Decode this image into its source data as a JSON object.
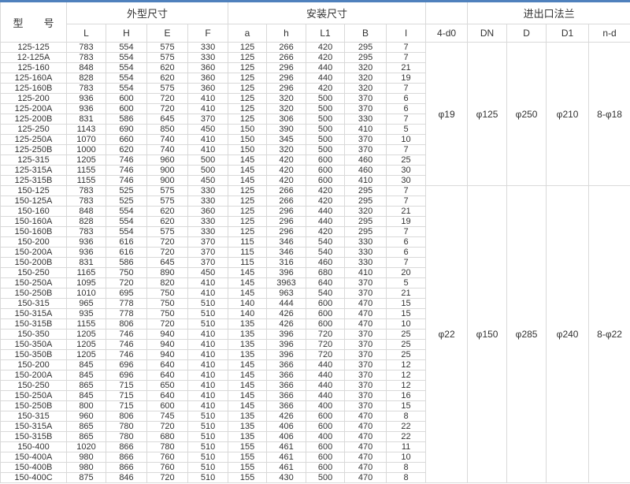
{
  "colors": {
    "accent_top_border": "#4f81bd",
    "grid_line": "#d9d9d9",
    "text": "#333333",
    "background": "#ffffff"
  },
  "table": {
    "model_header": "型　　号",
    "groups": [
      {
        "label": "外型尺寸",
        "span": 4
      },
      {
        "label": "安装尺寸",
        "span": 5
      },
      {
        "label": "",
        "span": 1
      },
      {
        "label": "进出口法兰",
        "span": 4
      }
    ],
    "columns": [
      "L",
      "H",
      "E",
      "F",
      "a",
      "h",
      "L1",
      "B",
      "l",
      "4-d0",
      "DN",
      "D",
      "D1",
      "n-d"
    ],
    "blocks": [
      {
        "flange": {
          "d0": "φ19",
          "dn": "φ125",
          "d": "φ250",
          "d1": "φ210",
          "nd": "8-φ18"
        },
        "rows": [
          [
            "125-125",
            783,
            554,
            575,
            330,
            125,
            266,
            420,
            295,
            7
          ],
          [
            "12-125A",
            783,
            554,
            575,
            330,
            125,
            266,
            420,
            295,
            7
          ],
          [
            "125-160",
            848,
            554,
            620,
            360,
            125,
            296,
            440,
            320,
            21
          ],
          [
            "125-160A",
            828,
            554,
            620,
            360,
            125,
            296,
            440,
            320,
            19
          ],
          [
            "125-160B",
            783,
            554,
            575,
            360,
            125,
            296,
            420,
            320,
            7
          ],
          [
            "125-200",
            936,
            600,
            720,
            410,
            125,
            320,
            500,
            370,
            6
          ],
          [
            "125-200A",
            936,
            600,
            720,
            410,
            125,
            320,
            500,
            370,
            6
          ],
          [
            "125-200B",
            831,
            586,
            645,
            370,
            125,
            306,
            500,
            330,
            7
          ],
          [
            "125-250",
            1143,
            690,
            850,
            450,
            150,
            390,
            500,
            410,
            5
          ],
          [
            "125-250A",
            1070,
            660,
            740,
            410,
            150,
            345,
            500,
            370,
            10
          ],
          [
            "125-250B",
            1000,
            620,
            740,
            410,
            150,
            320,
            500,
            370,
            7
          ],
          [
            "125-315",
            1205,
            746,
            960,
            500,
            145,
            420,
            600,
            460,
            25
          ],
          [
            "125-315A",
            1155,
            746,
            900,
            500,
            145,
            420,
            600,
            460,
            30
          ],
          [
            "125-315B",
            1155,
            746,
            900,
            450,
            145,
            420,
            600,
            410,
            30
          ]
        ]
      },
      {
        "flange": {
          "d0": "φ22",
          "dn": "φ150",
          "d": "φ285",
          "d1": "φ240",
          "nd": "8-φ22"
        },
        "rows": [
          [
            "150-125",
            783,
            525,
            575,
            330,
            125,
            266,
            420,
            295,
            7
          ],
          [
            "150-125A",
            783,
            525,
            575,
            330,
            125,
            266,
            420,
            295,
            7
          ],
          [
            "150-160",
            848,
            554,
            620,
            360,
            125,
            296,
            440,
            320,
            21
          ],
          [
            "150-160A",
            828,
            554,
            620,
            330,
            125,
            296,
            440,
            295,
            19
          ],
          [
            "150-160B",
            783,
            554,
            575,
            330,
            125,
            296,
            420,
            295,
            7
          ],
          [
            "150-200",
            936,
            616,
            720,
            370,
            115,
            346,
            540,
            330,
            6
          ],
          [
            "150-200A",
            936,
            616,
            720,
            370,
            115,
            346,
            540,
            330,
            6
          ],
          [
            "150-200B",
            831,
            586,
            645,
            370,
            115,
            316,
            460,
            330,
            7
          ],
          [
            "150-250",
            1165,
            750,
            890,
            450,
            145,
            396,
            680,
            410,
            20
          ],
          [
            "150-250A",
            1095,
            720,
            820,
            410,
            145,
            3963,
            640,
            370,
            5
          ],
          [
            "150-250B",
            1010,
            695,
            750,
            410,
            145,
            963,
            540,
            370,
            21
          ],
          [
            "150-315",
            965,
            778,
            750,
            510,
            140,
            444,
            600,
            470,
            15
          ],
          [
            "150-315A",
            935,
            778,
            750,
            510,
            140,
            426,
            600,
            470,
            15
          ],
          [
            "150-315B",
            1155,
            806,
            720,
            510,
            135,
            426,
            600,
            470,
            10
          ],
          [
            "150-350",
            1205,
            746,
            940,
            410,
            135,
            396,
            720,
            370,
            25
          ],
          [
            "150-350A",
            1205,
            746,
            940,
            410,
            135,
            396,
            720,
            370,
            25
          ],
          [
            "150-350B",
            1205,
            746,
            940,
            410,
            135,
            396,
            720,
            370,
            25
          ],
          [
            "150-200",
            845,
            696,
            640,
            410,
            145,
            366,
            440,
            370,
            12
          ],
          [
            "150-200A",
            845,
            696,
            640,
            410,
            145,
            366,
            440,
            370,
            12
          ],
          [
            "150-250",
            865,
            715,
            650,
            410,
            145,
            366,
            440,
            370,
            12
          ],
          [
            "150-250A",
            845,
            715,
            640,
            410,
            145,
            366,
            440,
            370,
            16
          ],
          [
            "150-250B",
            800,
            715,
            600,
            410,
            145,
            366,
            400,
            370,
            15
          ],
          [
            "150-315",
            960,
            806,
            745,
            510,
            135,
            426,
            600,
            470,
            8
          ],
          [
            "150-315A",
            865,
            780,
            720,
            510,
            135,
            406,
            600,
            470,
            22
          ],
          [
            "150-315B",
            865,
            780,
            680,
            510,
            135,
            406,
            400,
            470,
            22
          ],
          [
            "150-400",
            1020,
            866,
            780,
            510,
            155,
            461,
            600,
            470,
            11
          ],
          [
            "150-400A",
            980,
            866,
            760,
            510,
            155,
            461,
            600,
            470,
            10
          ],
          [
            "150-400B",
            980,
            866,
            760,
            510,
            155,
            461,
            600,
            470,
            8
          ],
          [
            "150-400C",
            875,
            846,
            720,
            510,
            155,
            430,
            500,
            470,
            8
          ]
        ]
      }
    ]
  }
}
